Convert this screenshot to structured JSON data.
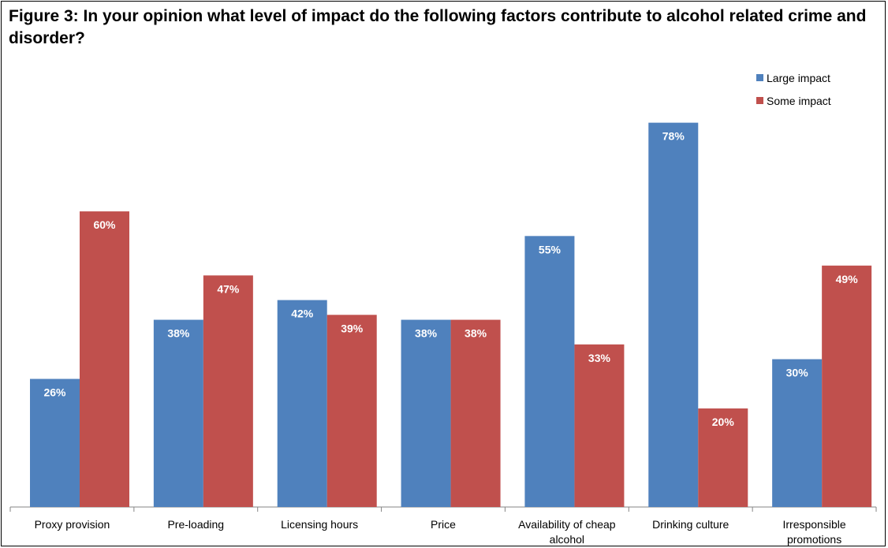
{
  "title": "Figure 3: In your opinion what level of impact do the following factors contribute to alcohol related crime and disorder?",
  "chart_data": {
    "type": "bar",
    "title": "Figure 3: In your opinion what level of impact do the following factors contribute to alcohol related crime and disorder?",
    "categories": [
      [
        "Proxy provision"
      ],
      [
        "Pre-loading"
      ],
      [
        "Licensing hours"
      ],
      [
        "Price"
      ],
      [
        "Availability of cheap",
        "alcohol"
      ],
      [
        "Drinking culture"
      ],
      [
        "Irresponsible",
        "promotions"
      ]
    ],
    "series": [
      {
        "name": "Large impact",
        "color": "#4F81BD",
        "values": [
          26,
          38,
          42,
          38,
          55,
          78,
          30
        ],
        "labels": [
          "26%",
          "38%",
          "42%",
          "38%",
          "55%",
          "78%",
          "30%"
        ]
      },
      {
        "name": "Some impact",
        "color": "#C0504D",
        "values": [
          60,
          47,
          39,
          38,
          33,
          20,
          49
        ],
        "labels": [
          "60%",
          "47%",
          "39%",
          "38%",
          "33%",
          "20%",
          "49%"
        ]
      }
    ],
    "ylim": [
      0,
      80
    ],
    "legend": "top-right",
    "grid": false,
    "xlabel": "",
    "ylabel": ""
  }
}
